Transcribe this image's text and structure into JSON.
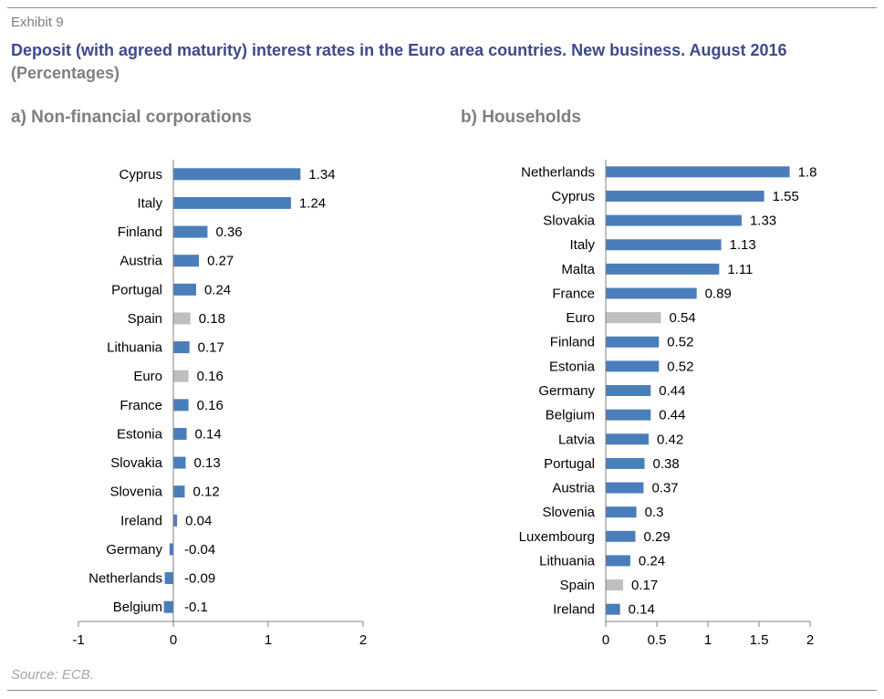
{
  "header": {
    "exhibit": "Exhibit 9",
    "title": "Deposit (with agreed maturity) interest rates in the Euro area countries. New business. August 2016",
    "subtitle": "(Percentages)"
  },
  "footer": {
    "source": "Source: ECB."
  },
  "colors": {
    "bar": "#4a7ebb",
    "highlight": "#bfbfbf",
    "title": "#3d4a8c"
  },
  "chart_data": [
    {
      "type": "bar",
      "orientation": "horizontal",
      "title": "a) Non-financial corporations",
      "categories": [
        "Cyprus",
        "Italy",
        "Finland",
        "Austria",
        "Portugal",
        "Spain",
        "Lithuania",
        "Euro",
        "France",
        "Estonia",
        "Slovakia",
        "Slovenia",
        "Ireland",
        "Germany",
        "Netherlands",
        "Belgium"
      ],
      "values": [
        1.34,
        1.24,
        0.36,
        0.27,
        0.24,
        0.18,
        0.17,
        0.16,
        0.16,
        0.14,
        0.13,
        0.12,
        0.04,
        -0.04,
        -0.09,
        -0.1
      ],
      "value_labels": [
        "1.34",
        "1.24",
        "0.36",
        "0.27",
        "0.24",
        "0.18",
        "0.17",
        "0.16",
        "0.16",
        "0.14",
        "0.13",
        "0.12",
        "0.04",
        "-0.04",
        "-0.09",
        "-0.1"
      ],
      "highlight": [
        "Spain",
        "Euro"
      ],
      "xlim": [
        -1,
        2
      ],
      "ticks": [
        -1,
        0,
        1,
        2
      ],
      "tick_labels": [
        "-1",
        "0",
        "1",
        "2"
      ],
      "grid": false
    },
    {
      "type": "bar",
      "orientation": "horizontal",
      "title": "b) Households",
      "categories": [
        "Netherlands",
        "Cyprus",
        "Slovakia",
        "Italy",
        "Malta",
        "France",
        "Euro",
        "Finland",
        "Estonia",
        "Germany",
        "Belgium",
        "Latvia",
        "Portugal",
        "Austria",
        "Slovenia",
        "Luxembourg",
        "Lithuania",
        "Spain",
        "Ireland"
      ],
      "values": [
        1.8,
        1.55,
        1.33,
        1.13,
        1.11,
        0.89,
        0.54,
        0.52,
        0.52,
        0.44,
        0.44,
        0.42,
        0.38,
        0.37,
        0.3,
        0.29,
        0.24,
        0.17,
        0.14
      ],
      "value_labels": [
        "1.8",
        "1.55",
        "1.33",
        "1.13",
        "1.11",
        "0.89",
        "0.54",
        "0.52",
        "0.52",
        "0.44",
        "0.44",
        "0.42",
        "0.38",
        "0.37",
        "0.3",
        "0.29",
        "0.24",
        "0.17",
        "0.14"
      ],
      "highlight": [
        "Euro",
        "Spain"
      ],
      "xlim": [
        0,
        2
      ],
      "ticks": [
        0,
        0.5,
        1,
        1.5,
        2
      ],
      "tick_labels": [
        "0",
        "0.5",
        "1",
        "1.5",
        "2"
      ],
      "grid": false
    }
  ]
}
